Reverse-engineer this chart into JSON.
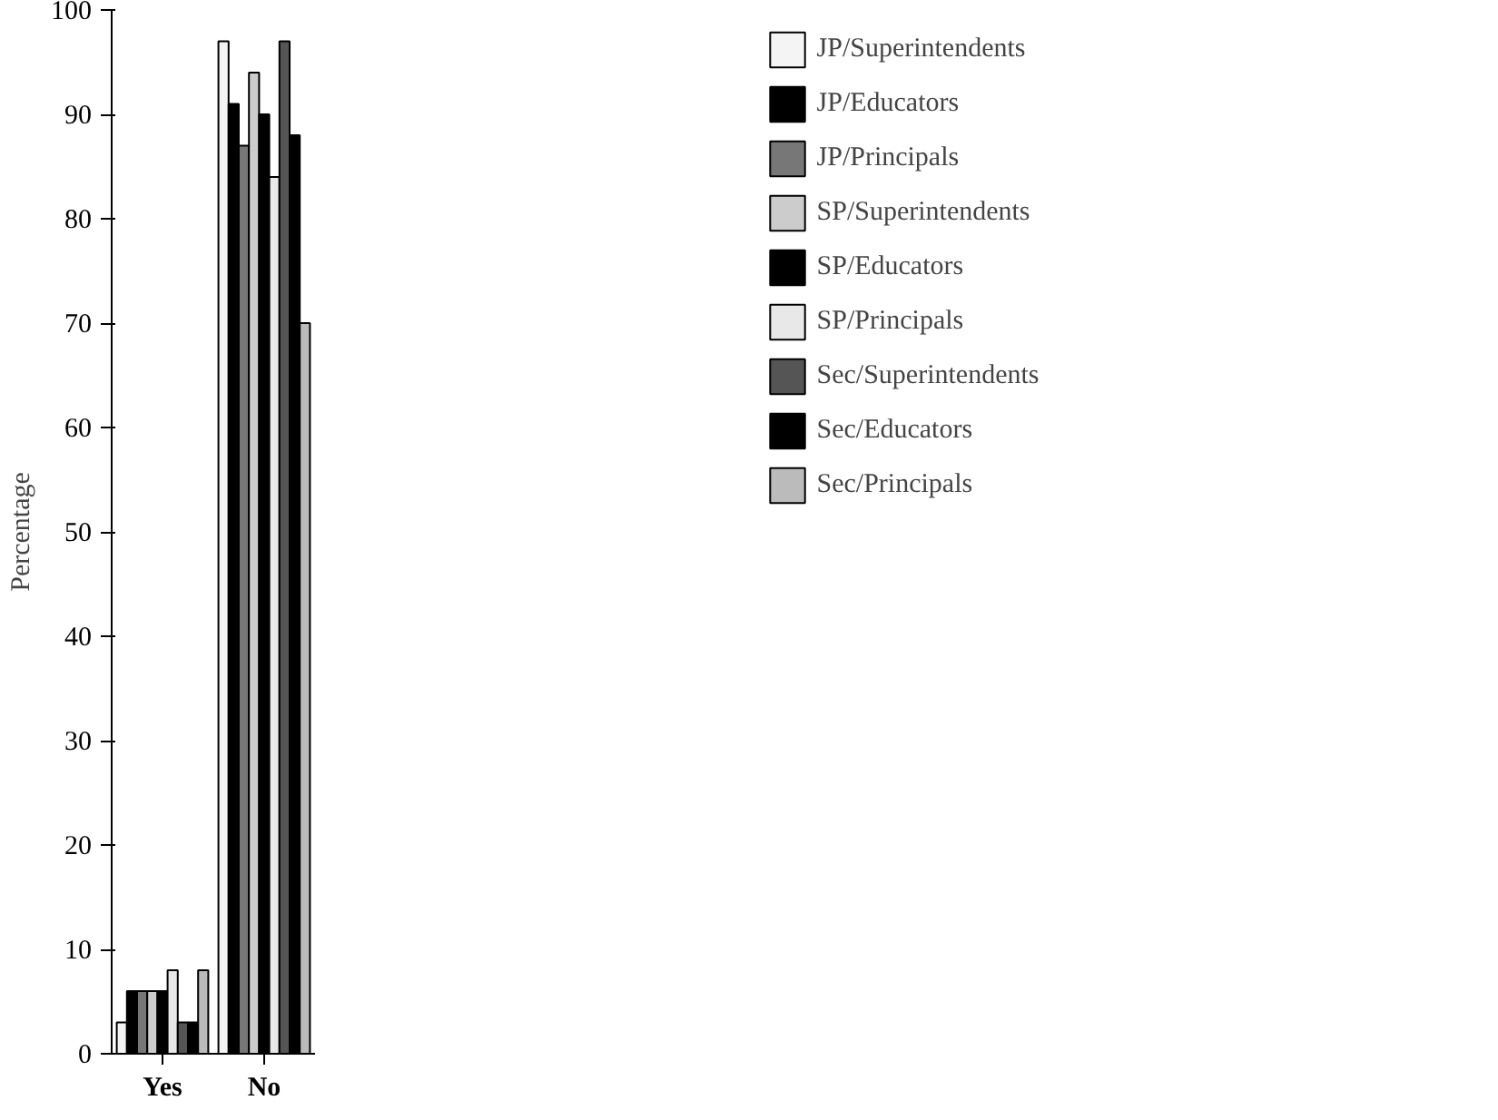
{
  "chart_data": {
    "type": "bar",
    "ylabel": "Percentage",
    "categories": [
      "Yes",
      "No"
    ],
    "series": [
      {
        "name": "JP/Superintendents",
        "color": "#f4f4f4",
        "values": [
          3,
          97
        ]
      },
      {
        "name": "JP/Educators",
        "color": "#000000",
        "values": [
          6,
          91
        ]
      },
      {
        "name": "JP/Principals",
        "color": "#777777",
        "values": [
          6,
          87
        ]
      },
      {
        "name": "SP/Superintendents",
        "color": "#cccccc",
        "values": [
          6,
          94
        ]
      },
      {
        "name": "SP/Educators",
        "color": "#000000",
        "values": [
          6,
          90
        ]
      },
      {
        "name": "SP/Principals",
        "color": "#e8e8e8",
        "values": [
          8,
          84
        ]
      },
      {
        "name": "Sec/Superintendents",
        "color": "#555555",
        "values": [
          3,
          97
        ]
      },
      {
        "name": "Sec/Educators",
        "color": "#000000",
        "values": [
          3,
          88
        ]
      },
      {
        "name": "Sec/Principals",
        "color": "#bbbbbb",
        "values": [
          8,
          70
        ]
      }
    ],
    "ylim": [
      0,
      100
    ],
    "yticks": [
      0,
      10,
      20,
      30,
      40,
      50,
      60,
      70,
      80,
      90,
      100
    ],
    "grid": false,
    "legend": "top right"
  }
}
